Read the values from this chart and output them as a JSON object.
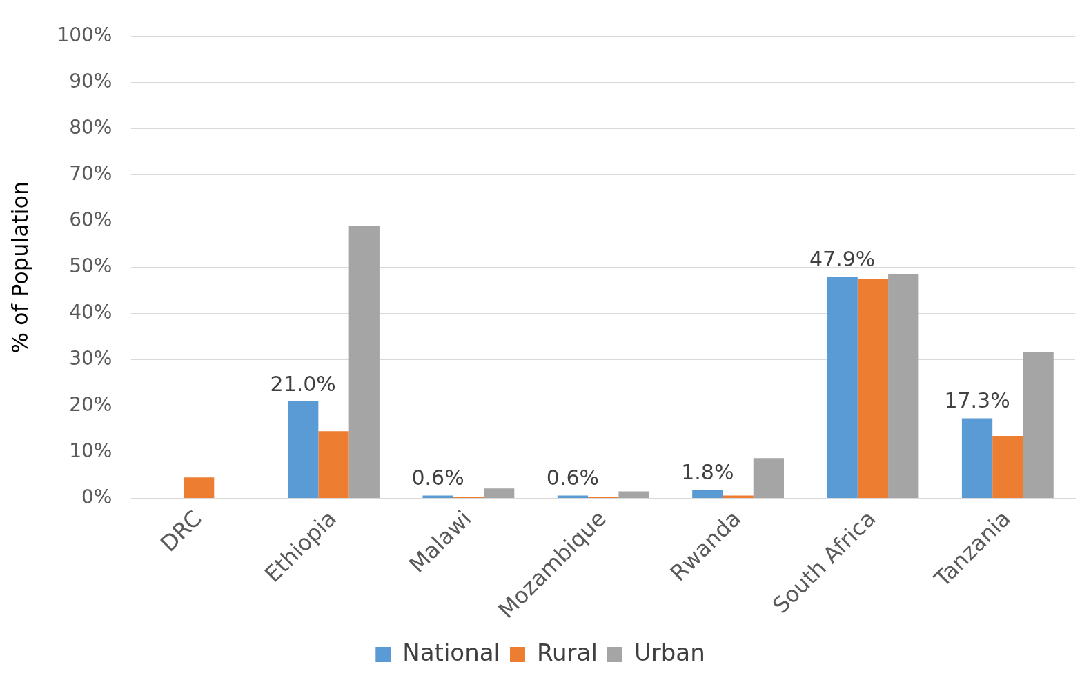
{
  "chart_data": {
    "type": "bar",
    "ylabel": "% of Population",
    "categories": [
      "DRC",
      "Ethiopia",
      "Malawi",
      "Mozambique",
      "Rwanda",
      "South Africa",
      "Tanzania"
    ],
    "series": [
      {
        "name": "National",
        "color": "#5b9bd5",
        "values": [
          null,
          21.0,
          0.6,
          0.6,
          1.8,
          47.9,
          17.3
        ],
        "value_labels": [
          null,
          "21.0%",
          "0.6%",
          "0.6%",
          "1.8%",
          "47.9%",
          "17.3%"
        ]
      },
      {
        "name": "Rural",
        "color": "#ed7d31",
        "values": [
          4.5,
          14.5,
          0.3,
          0.3,
          0.6,
          47.4,
          13.5
        ]
      },
      {
        "name": "Urban",
        "color": "#a5a5a5",
        "values": [
          null,
          58.9,
          2.1,
          1.5,
          8.7,
          48.6,
          31.6
        ]
      }
    ],
    "ylim": [
      0,
      100
    ],
    "yticks": [
      {
        "value": 0,
        "label": "0%"
      },
      {
        "value": 10,
        "label": "10%"
      },
      {
        "value": 20,
        "label": "20%"
      },
      {
        "value": 30,
        "label": "30%"
      },
      {
        "value": 40,
        "label": "40%"
      },
      {
        "value": 50,
        "label": "50%"
      },
      {
        "value": 60,
        "label": "60%"
      },
      {
        "value": 70,
        "label": "70%"
      },
      {
        "value": 80,
        "label": "80%"
      },
      {
        "value": 90,
        "label": "90%"
      },
      {
        "value": 100,
        "label": "100%"
      }
    ],
    "grid": "y",
    "legend": "bottom"
  }
}
